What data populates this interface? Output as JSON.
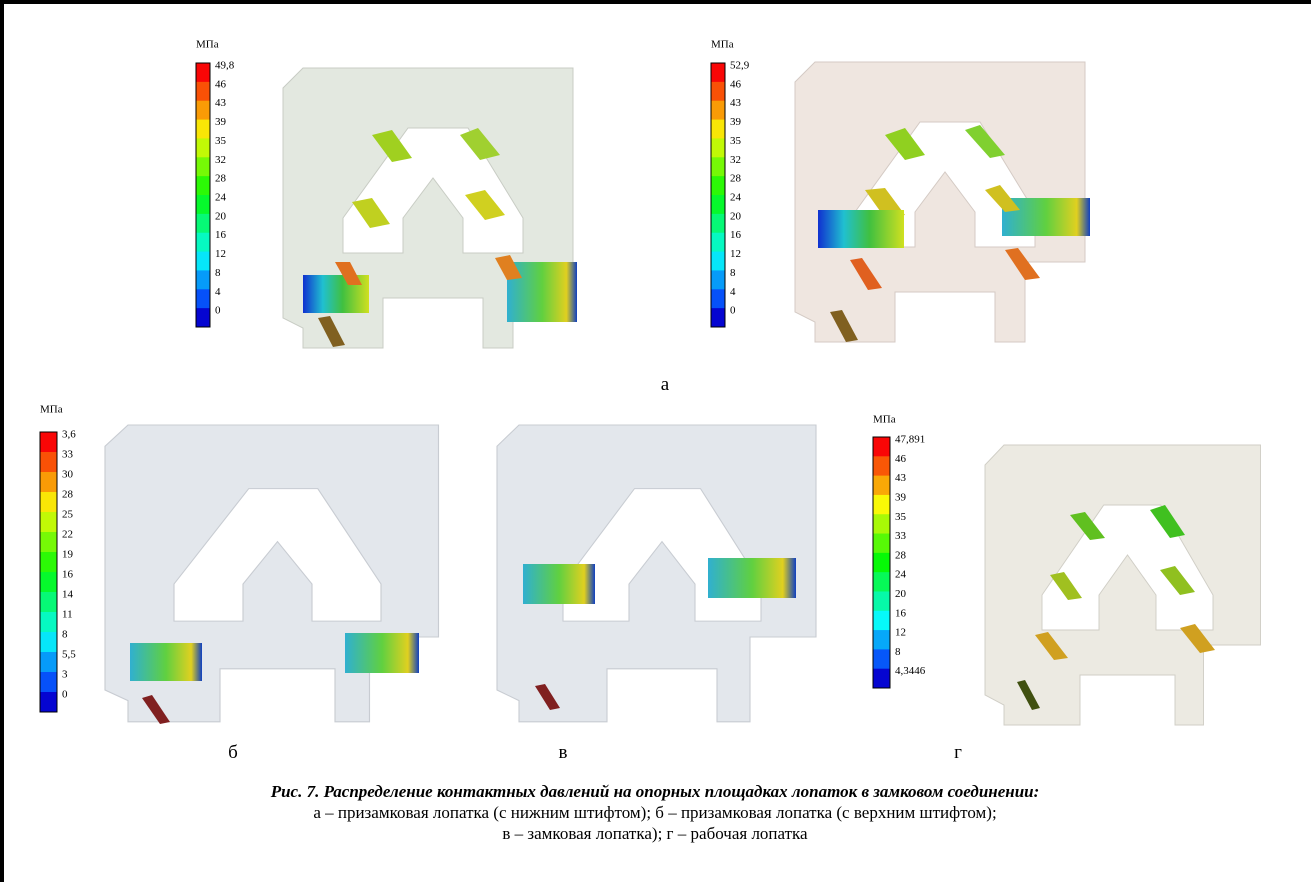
{
  "panels": [
    {
      "label": "а",
      "legends": [
        {
          "unit": "МПа",
          "ticks": [
            "49,8",
            "46",
            "43",
            "39",
            "35",
            "32",
            "28",
            "24",
            "20",
            "16",
            "12",
            "8",
            "4",
            "0"
          ]
        },
        {
          "unit": "МПа",
          "ticks": [
            "52,9",
            "46",
            "43",
            "39",
            "35",
            "32",
            "28",
            "24",
            "20",
            "16",
            "12",
            "8",
            "4",
            "0"
          ]
        }
      ]
    },
    {
      "label": "б",
      "legends": [
        {
          "unit": "МПа",
          "ticks": [
            "3,6",
            "33",
            "30",
            "28",
            "25",
            "22",
            "19",
            "16",
            "14",
            "11",
            "8",
            "5,5",
            "3",
            "0"
          ]
        }
      ]
    },
    {
      "label": "в",
      "legends": []
    },
    {
      "label": "г",
      "legends": [
        {
          "unit": "МПа",
          "ticks": [
            "47,891",
            "46",
            "43",
            "39",
            "35",
            "33",
            "28",
            "24",
            "20",
            "16",
            "12",
            "8",
            "4,3446"
          ]
        }
      ]
    }
  ],
  "caption": {
    "title": "Рис. 7. Распределение контактных давлений на опорных площадках лопаток в замковом соединении:",
    "lines": [
      "а – призамковая лопатка (с нижним штифтом); б – призамковая лопатка (с верхним штифтом);",
      "в – замковая лопатка); г – рабочая лопатка"
    ]
  }
}
